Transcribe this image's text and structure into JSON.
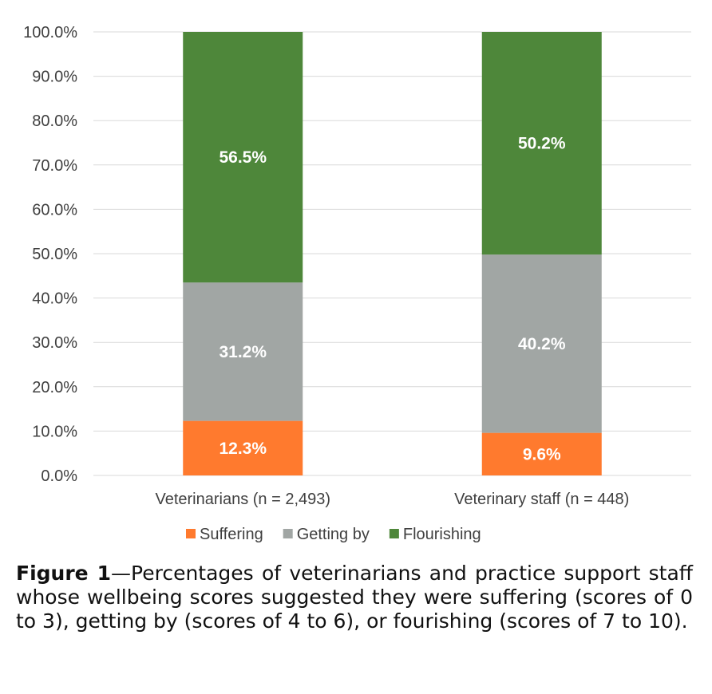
{
  "chart_data": {
    "type": "bar",
    "stacked": true,
    "categories": [
      "Veterinarians (n = 2,493)",
      "Veterinary staff (n = 448)"
    ],
    "series": [
      {
        "name": "Suffering",
        "color": "#ff7a2e",
        "values": [
          12.3,
          9.6
        ],
        "labels": [
          "12.3%",
          "9.6%"
        ]
      },
      {
        "name": "Getting by",
        "color": "#a1a6a4",
        "values": [
          31.2,
          40.2
        ],
        "labels": [
          "31.2%",
          "40.2%"
        ]
      },
      {
        "name": "Flourishing",
        "color": "#4e873a",
        "values": [
          56.5,
          50.2
        ],
        "labels": [
          "56.5%",
          "50.2%"
        ]
      }
    ],
    "ylim": [
      0,
      100
    ],
    "yticks": [
      "0.0%",
      "10.0%",
      "20.0%",
      "30.0%",
      "40.0%",
      "50.0%",
      "60.0%",
      "70.0%",
      "80.0%",
      "90.0%",
      "100.0%"
    ],
    "grid": true,
    "legend_position": "bottom"
  },
  "caption": {
    "label": "Figure 1",
    "text": "—Percentages of veterinarians and practice support staff whose wellbeing scores suggested they were suffering (scores of 0  to 3), getting by (scores of 4 to 6), or fourishing (scores of 7 to 10)."
  }
}
